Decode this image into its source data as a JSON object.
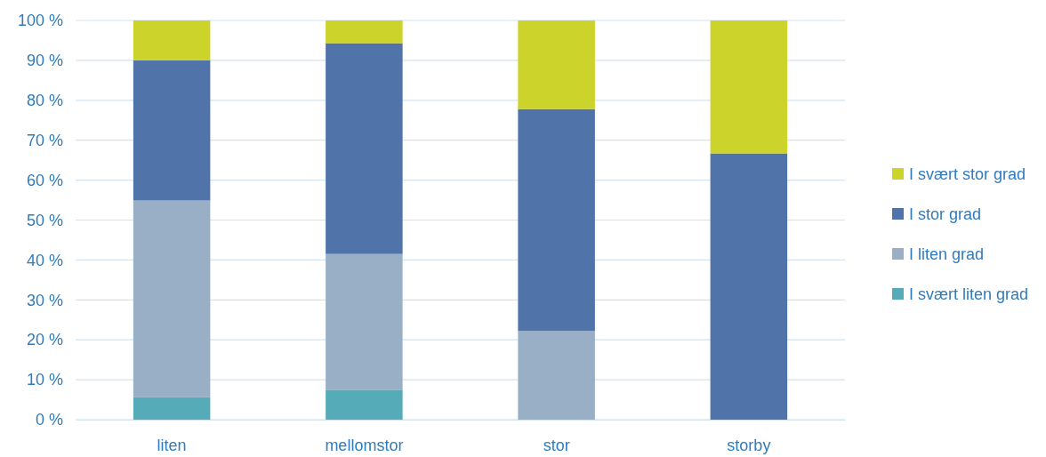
{
  "chart_data": {
    "type": "bar",
    "stacked": true,
    "categories": [
      "liten",
      "mellomstor",
      "stor",
      "storby"
    ],
    "series": [
      {
        "name": "I svært liten grad",
        "color": "#56abb8",
        "values": [
          5.6,
          7.5,
          0,
          0
        ]
      },
      {
        "name": "I liten grad",
        "color": "#99afc6",
        "values": [
          49.3,
          34.0,
          22.2,
          0
        ]
      },
      {
        "name": "I stor grad",
        "color": "#5073aa",
        "values": [
          35.1,
          52.8,
          55.6,
          66.7
        ]
      },
      {
        "name": "I svært stor grad",
        "color": "#ccd32a",
        "values": [
          10.0,
          5.7,
          22.2,
          33.3
        ]
      }
    ],
    "ylim": [
      0,
      100
    ],
    "yticks": [
      {
        "value": 0,
        "label": "0 %"
      },
      {
        "value": 10,
        "label": "10 %"
      },
      {
        "value": 20,
        "label": "20 %"
      },
      {
        "value": 30,
        "label": "30 %"
      },
      {
        "value": 40,
        "label": "40 %"
      },
      {
        "value": 50,
        "label": "50 %"
      },
      {
        "value": 60,
        "label": "60 %"
      },
      {
        "value": 70,
        "label": "70 %"
      },
      {
        "value": 80,
        "label": "80 %"
      },
      {
        "value": 90,
        "label": "90 %"
      },
      {
        "value": 100,
        "label": "100 %"
      }
    ],
    "grid": "y",
    "legend": "right"
  }
}
